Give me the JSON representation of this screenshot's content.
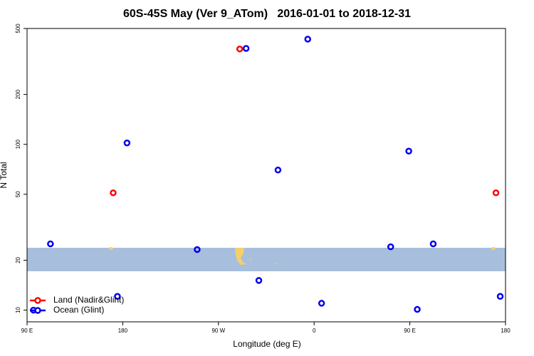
{
  "chart_data": {
    "type": "scatter",
    "title": "60S-45S May (Ver 9_ATom)   2016-01-01 to 2018-12-31",
    "x_label": "Longitude (deg E)",
    "y_label": "N Total",
    "log_y": true,
    "legend": "lower left",
    "xlim": [
      90,
      540
    ],
    "ylim": [
      8.5,
      500
    ],
    "xticks": [
      {
        "value": 90,
        "label": "90 E"
      },
      180,
      {
        "value": 270,
        "label": "90 W"
      },
      {
        "value": 360,
        "label": "0"
      },
      {
        "value": 450,
        "label": "90 E"
      },
      {
        "value": 540,
        "label": "180"
      }
    ],
    "yticks": [
      10,
      20,
      50,
      100,
      200,
      500
    ],
    "series": [
      {
        "name": "Land (Nadir&Glint)",
        "color": "#ff0000",
        "x": [
          290,
          171,
          531
        ],
        "values": [
          376,
          51,
          51
        ]
      },
      {
        "name": "Ocean (Glint)",
        "color": "#0000ee",
        "x": [
          296,
          354,
          184,
          449,
          326,
          112,
          250,
          432,
          472,
          308,
          175,
          535,
          367,
          457,
          96
        ],
        "values": [
          379,
          431,
          102,
          91,
          70,
          25.1,
          23.2,
          24.1,
          25.1,
          15.1,
          12.1,
          12.1,
          11.0,
          10.1,
          10.0
        ]
      }
    ]
  }
}
